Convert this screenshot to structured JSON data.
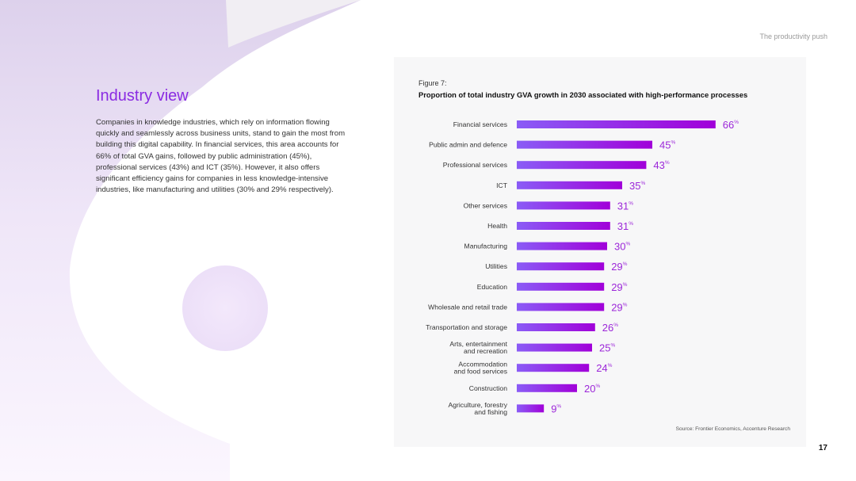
{
  "header": {
    "tag": "The productivity push"
  },
  "page_number": "17",
  "section": {
    "title": "Industry view",
    "body": "Companies in knowledge industries, which rely on information flowing quickly and seamlessly across business units, stand to gain the most from building this digital capability. In financial services, this area accounts for 66% of total GVA gains, followed by public administration (45%), professional services (43%) and ICT (35%). However, it also offers significant efficiency gains for companies in less knowledge-intensive industries, like manufacturing and utilities (30% and 29% respectively)."
  },
  "figure": {
    "label": "Figure 7:",
    "source": "Source: Frontier Economics, Accenture Research"
  },
  "colors": {
    "accent": "#8a2be2",
    "bar_start": "#8a5cf6",
    "bar_end": "#a100d9",
    "value_text": "#9c27d9",
    "panel_bg": "#f7f7f8"
  },
  "chart_data": {
    "type": "bar",
    "orientation": "horizontal",
    "title": "Proportion of total industry GVA growth in 2030 associated with high-performance processes",
    "unit": "%",
    "categories": [
      [
        "Financial services"
      ],
      [
        "Public admin and defence"
      ],
      [
        "Professional services"
      ],
      [
        "ICT"
      ],
      [
        "Other services"
      ],
      [
        "Health"
      ],
      [
        "Manufacturing"
      ],
      [
        "Utilities"
      ],
      [
        "Education"
      ],
      [
        "Wholesale and retail trade"
      ],
      [
        "Transportation and storage"
      ],
      [
        "Arts, entertainment",
        "and recreation"
      ],
      [
        "Accommodation",
        "and food services"
      ],
      [
        "Construction"
      ],
      [
        "Agriculture, forestry",
        "and fishing"
      ]
    ],
    "values": [
      66,
      45,
      43,
      35,
      31,
      31,
      30,
      29,
      29,
      29,
      26,
      25,
      24,
      20,
      9
    ],
    "xlim": [
      0,
      100
    ],
    "grid": false,
    "legend": "none"
  }
}
